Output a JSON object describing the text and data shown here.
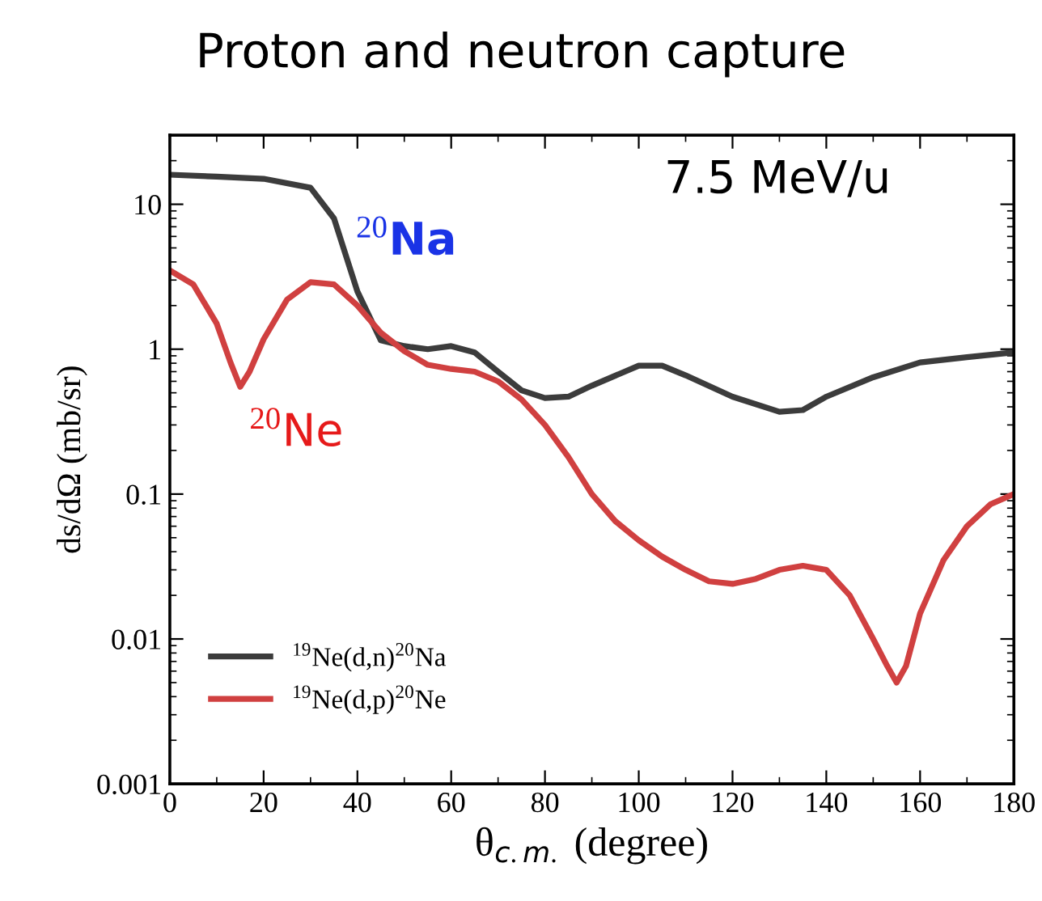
{
  "chart_data": {
    "type": "line",
    "title": "Proton and neutron capture",
    "xlabel": "θ$_{c.m.}$ (degree)",
    "ylabel": "ds/dΩ (mb/sr)",
    "log": "y",
    "xlim": [
      0,
      180
    ],
    "xticks": [
      0,
      20,
      40,
      60,
      80,
      100,
      120,
      140,
      160,
      180
    ],
    "ylim": [
      0.001,
      30
    ],
    "yticks": [
      0.001,
      0.01,
      0.1,
      1,
      10
    ],
    "grid": false,
    "legend": "bottom left",
    "marker": "none",
    "line_style": "solid",
    "annotations": [
      "7.5 MeV/u",
      "$^{20}$Na",
      "$^{20}$Ne"
    ],
    "series": [
      {
        "name": "$^{19}$Ne(d,n)$^{20}$Na",
        "color": "#3c3c3c",
        "x": [
          0,
          10,
          20,
          30,
          35,
          40,
          45,
          50,
          55,
          60,
          65,
          70,
          75,
          80,
          85,
          90,
          100,
          105,
          110,
          120,
          130,
          135,
          140,
          150,
          160,
          170,
          180
        ],
        "values": [
          16,
          15.5,
          15,
          13,
          8,
          2.5,
          1.15,
          1.05,
          1.0,
          1.05,
          0.95,
          0.7,
          0.52,
          0.46,
          0.47,
          0.56,
          0.77,
          0.77,
          0.66,
          0.47,
          0.37,
          0.38,
          0.47,
          0.64,
          0.81,
          0.88,
          0.95
        ]
      },
      {
        "name": "$^{19}$Ne(d,p)$^{20}$Ne",
        "color": "#d04040",
        "x": [
          0,
          5,
          10,
          13,
          15,
          17,
          20,
          25,
          30,
          35,
          40,
          45,
          50,
          55,
          60,
          65,
          70,
          75,
          80,
          85,
          90,
          95,
          100,
          105,
          110,
          115,
          120,
          125,
          130,
          135,
          140,
          145,
          150,
          153,
          155,
          157,
          160,
          165,
          170,
          175,
          180
        ],
        "values": [
          3.5,
          2.8,
          1.5,
          0.8,
          0.55,
          0.7,
          1.17,
          2.2,
          2.9,
          2.8,
          2.0,
          1.3,
          0.97,
          0.78,
          0.73,
          0.7,
          0.6,
          0.45,
          0.3,
          0.18,
          0.1,
          0.065,
          0.048,
          0.037,
          0.03,
          0.025,
          0.024,
          0.026,
          0.03,
          0.032,
          0.03,
          0.02,
          0.01,
          0.0065,
          0.005,
          0.0065,
          0.015,
          0.035,
          0.06,
          0.085,
          0.1
        ]
      }
    ]
  }
}
